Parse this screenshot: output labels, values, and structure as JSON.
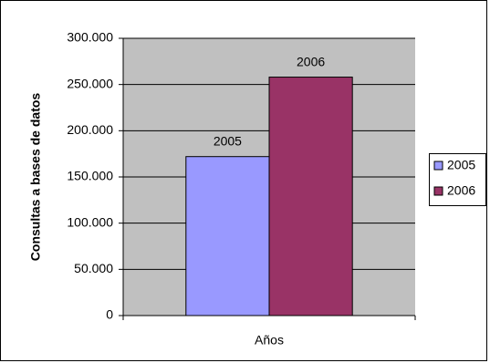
{
  "chart_data": {
    "type": "bar",
    "y_label": "Consultas a bases de datos",
    "categories": [
      "Años"
    ],
    "series": [
      {
        "name": "2005",
        "color": "#9999ff",
        "values": [
          172000
        ]
      },
      {
        "name": "2006",
        "color": "#993366",
        "values": [
          258000
        ]
      }
    ],
    "ylim": [
      0,
      300000
    ],
    "yticks": [
      0,
      {
        "value": 50000,
        "label": "50.000"
      },
      {
        "value": 100000,
        "label": "100.000"
      },
      {
        "value": 150000,
        "label": "150.000"
      },
      {
        "value": 200000,
        "label": "200.000"
      },
      {
        "value": 250000,
        "label": "250.000"
      },
      {
        "value": 300000,
        "label": "300.000"
      }
    ],
    "grid": true,
    "legend": "right"
  }
}
